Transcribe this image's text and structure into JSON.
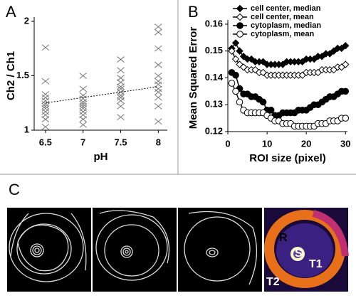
{
  "chart_data": [
    {
      "type": "scatter",
      "panel_label": "A",
      "x_label": "pH",
      "y_label": "Ch2 / Ch1",
      "color": "#777",
      "x": [
        6.5,
        6.5,
        6.5,
        6.5,
        6.5,
        6.5,
        6.5,
        6.5,
        6.5,
        6.5,
        6.5,
        6.5,
        7,
        7,
        7,
        7,
        7,
        7,
        7,
        7,
        7,
        7,
        7,
        7,
        7.5,
        7.5,
        7.5,
        7.5,
        7.5,
        7.5,
        7.5,
        7.5,
        7.5,
        7.5,
        7.5,
        7.5,
        8,
        8,
        8,
        8,
        8,
        8,
        8,
        8,
        8,
        8,
        8,
        8
      ],
      "values": [
        1.76,
        1.45,
        1.33,
        1.3,
        1.27,
        1.24,
        1.22,
        1.2,
        1.17,
        1.14,
        1.1,
        1.03,
        1.5,
        1.38,
        1.32,
        1.29,
        1.26,
        1.24,
        1.22,
        1.2,
        1.17,
        1.14,
        1.1,
        1.05,
        1.65,
        1.55,
        1.48,
        1.44,
        1.4,
        1.38,
        1.35,
        1.32,
        1.3,
        1.27,
        1.22,
        1.12,
        1.95,
        1.9,
        1.75,
        1.6,
        1.5,
        1.45,
        1.42,
        1.38,
        1.35,
        1.3,
        1.22,
        1.08
      ],
      "trendline": {
        "x": [
          6.5,
          8
        ],
        "values": [
          1.25,
          1.4
        ]
      },
      "xlim": [
        6.35,
        8.12
      ],
      "xticks": [
        6.5,
        7,
        7.5,
        8
      ],
      "ylim": [
        1,
        2
      ],
      "yticks": [
        1,
        1.5,
        2
      ]
    },
    {
      "type": "line",
      "panel_label": "B",
      "x_label": "ROI size (pixel)",
      "y_label": "Mean Squared Error",
      "x": [
        1,
        2,
        3,
        4,
        5,
        6,
        7,
        8,
        9,
        10,
        11,
        12,
        13,
        14,
        15,
        16,
        17,
        18,
        19,
        20,
        21,
        22,
        23,
        24,
        25,
        26,
        27,
        28,
        29,
        30
      ],
      "series": [
        {
          "name": "cell center, median",
          "color": "#000",
          "marker": "diamond",
          "filled": true,
          "values": [
            0.151,
            0.153,
            0.15,
            0.148,
            0.147,
            0.147,
            0.146,
            0.146,
            0.146,
            0.145,
            0.145,
            0.145,
            0.145,
            0.145,
            0.146,
            0.146,
            0.146,
            0.146,
            0.146,
            0.147,
            0.147,
            0.147,
            0.148,
            0.148,
            0.149,
            0.149,
            0.15,
            0.151,
            0.151,
            0.152
          ]
        },
        {
          "name": "cell center, mean",
          "color": "#000",
          "marker": "diamond",
          "filled": false,
          "values": [
            0.15,
            0.147,
            0.145,
            0.144,
            0.143,
            0.143,
            0.143,
            0.142,
            0.142,
            0.141,
            0.141,
            0.141,
            0.141,
            0.141,
            0.141,
            0.141,
            0.141,
            0.141,
            0.141,
            0.142,
            0.142,
            0.142,
            0.142,
            0.143,
            0.143,
            0.143,
            0.143,
            0.144,
            0.144,
            0.145
          ]
        },
        {
          "name": "cytoplasm, median",
          "color": "#000",
          "marker": "circle",
          "filled": true,
          "values": [
            0.142,
            0.141,
            0.136,
            0.134,
            0.134,
            0.133,
            0.133,
            0.132,
            0.131,
            0.128,
            0.128,
            0.126,
            0.126,
            0.127,
            0.127,
            0.127,
            0.127,
            0.128,
            0.128,
            0.128,
            0.129,
            0.13,
            0.13,
            0.131,
            0.132,
            0.133,
            0.133,
            0.134,
            0.135,
            0.135
          ]
        },
        {
          "name": "cytoplasm, mean",
          "color": "#000",
          "marker": "circle",
          "filled": false,
          "values": [
            0.138,
            0.135,
            0.131,
            0.128,
            0.127,
            0.127,
            0.127,
            0.127,
            0.127,
            0.126,
            0.125,
            0.124,
            0.124,
            0.123,
            0.123,
            0.123,
            0.122,
            0.122,
            0.122,
            0.122,
            0.122,
            0.122,
            0.123,
            0.123,
            0.123,
            0.124,
            0.124,
            0.124,
            0.125,
            0.125
          ]
        }
      ],
      "xlim": [
        0,
        30.5
      ],
      "xticks": [
        0,
        10,
        20,
        30
      ],
      "ylim": [
        0.12,
        0.16
      ],
      "yticks": [
        0.12,
        0.13,
        0.14,
        0.15,
        0.16
      ]
    }
  ],
  "panel_c": {
    "panel_label": "C",
    "labels": [
      "R",
      "S",
      "T1",
      "T2"
    ]
  }
}
